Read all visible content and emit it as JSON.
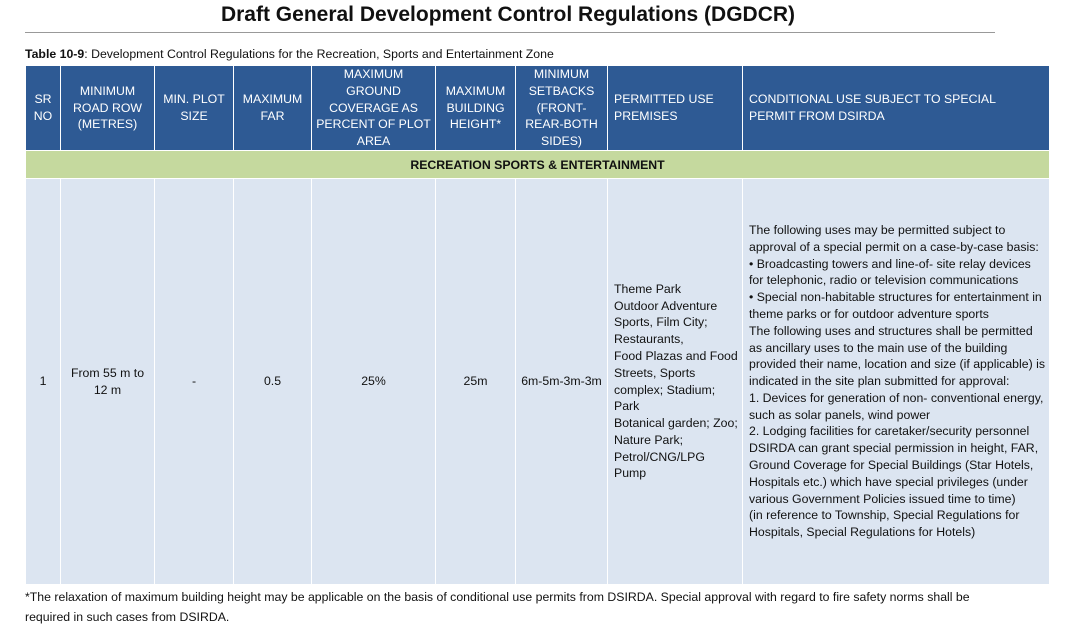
{
  "doc_title": "Draft General Development Control Regulations (DGDCR)",
  "caption": {
    "label": "Table 10-9",
    "text": ": Development Control Regulations for the Recreation, Sports and Entertainment Zone"
  },
  "headers": [
    "SR NO",
    "MINIMUM ROAD ROW (METRES)",
    "MIN. PLOT SIZE",
    "MAXIMUM FAR",
    "MAXIMUM GROUND COVERAGE AS PERCENT OF PLOT AREA",
    "MAXIMUM BUILDING HEIGHT*",
    "MINIMUM SETBACKS (FRONT-REAR-BOTH SIDES)",
    "PERMITTED USE PREMISES",
    "CONDITIONAL USE SUBJECT TO SPECIAL PERMIT FROM DSIRDA"
  ],
  "zone": "RECREATION SPORTS & ENTERTAINMENT",
  "row": {
    "sr": "1",
    "road_row": "From 55 m to 12 m",
    "plot_size": "-",
    "far": "0.5",
    "ground_coverage": "25%",
    "height": "25m",
    "setbacks": "6m-5m-3m-3m",
    "permitted": "Theme Park\nOutdoor Adventure Sports, Film City; Restaurants,\nFood Plazas and Food Streets, Sports complex; Stadium; Park\nBotanical garden; Zoo; Nature Park; Petrol/CNG/LPG Pump",
    "conditional": "The following uses may be permitted subject to approval of a special permit on a case-by-case basis:\n•  Broadcasting towers and line-of- site relay devices for telephonic,  radio or television communications\n•  Special non-habitable structures  for entertainment in theme parks  or for outdoor adventure sports\nThe following uses and structures shall be permitted as ancillary uses to the main use of the building provided their name, location and size (if applicable) is indicated in the site plan submitted for approval:\n1.  Devices for generation of non- conventional energy, such as solar  panels, wind power\n2.  Lodging facilities for  caretaker/security personnel\nDSIRDA can grant special permission in height, FAR, Ground Coverage for Special Buildings (Star Hotels, Hospitals etc.) which have special privileges (under various Government Policies issued time to time)\n(in reference to Township, Special Regulations for Hospitals, Special Regulations for Hotels)"
  },
  "footnote": "*The relaxation of maximum building height may be applicable on the basis of conditional use permits from DSIRDA. Special approval with regard to fire safety norms shall be required in such cases from DSIRDA.",
  "colors": {
    "header": "#2e5a94",
    "zone": "#c5d99e",
    "body": "#dce5f1"
  }
}
